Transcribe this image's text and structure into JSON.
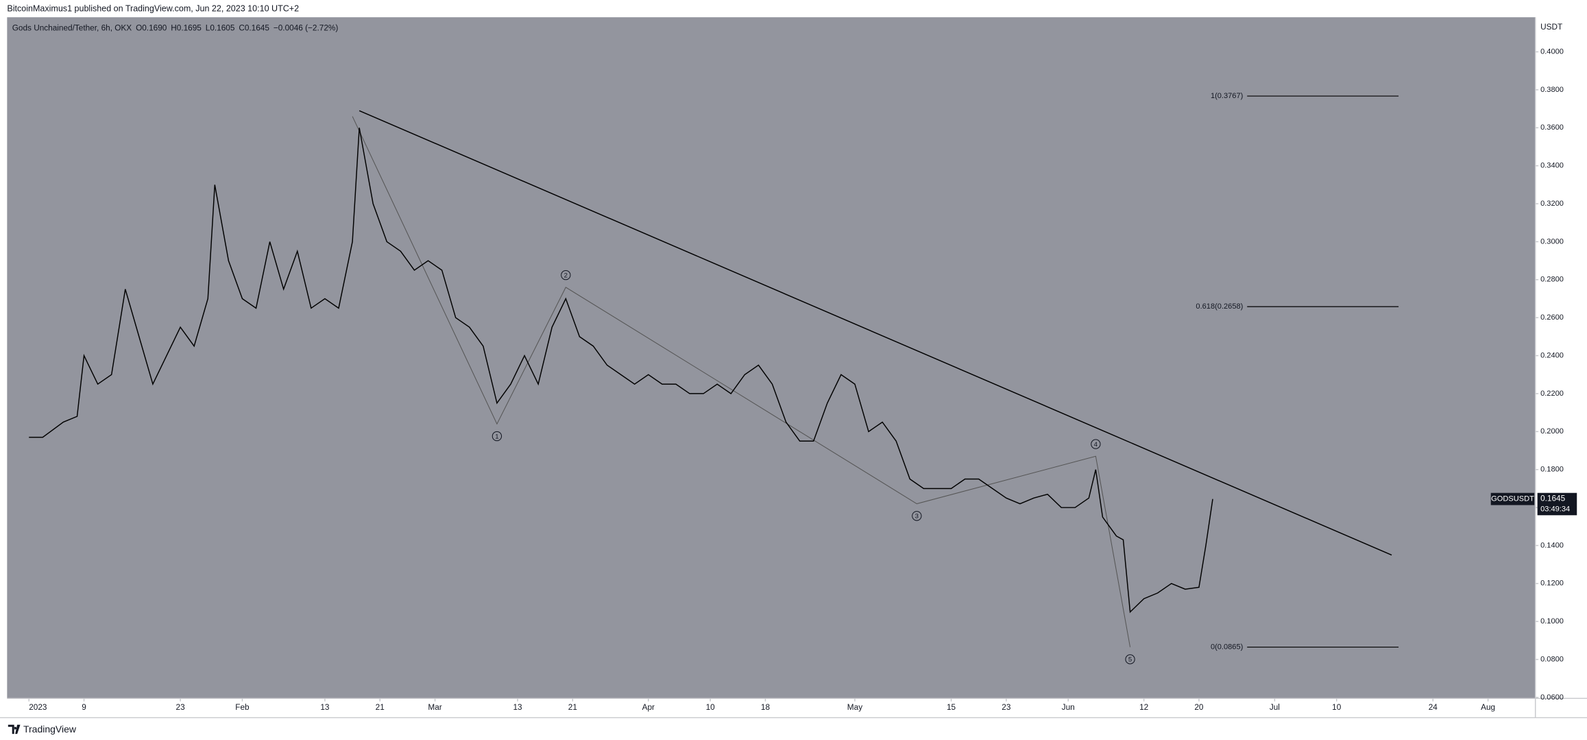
{
  "header": {
    "published": "BitcoinMaximus1 published on TradingView.com, Jun 22, 2023 10:10 UTC+2"
  },
  "footer": {
    "brand": "TradingView"
  },
  "chart_data": {
    "type": "line",
    "title": "Gods Unchained/Tether, 6h, OKX",
    "ohlc_text": [
      "O0.1690",
      "H0.1695",
      "L0.1605",
      "C0.1645",
      "−0.0046 (−2.72%)"
    ],
    "y_unit": "USDT",
    "x": [
      "2023-01-01",
      "2023-01-03",
      "2023-01-06",
      "2023-01-08",
      "2023-01-09",
      "2023-01-11",
      "2023-01-13",
      "2023-01-15",
      "2023-01-17",
      "2023-01-19",
      "2023-01-21",
      "2023-01-23",
      "2023-01-25",
      "2023-01-27",
      "2023-01-28",
      "2023-01-30",
      "2023-02-01",
      "2023-02-03",
      "2023-02-05",
      "2023-02-07",
      "2023-02-09",
      "2023-02-11",
      "2023-02-13",
      "2023-02-15",
      "2023-02-17",
      "2023-02-18",
      "2023-02-20",
      "2023-02-22",
      "2023-02-24",
      "2023-02-26",
      "2023-02-28",
      "2023-03-02",
      "2023-03-04",
      "2023-03-06",
      "2023-03-08",
      "2023-03-10",
      "2023-03-12",
      "2023-03-14",
      "2023-03-16",
      "2023-03-18",
      "2023-03-20",
      "2023-03-22",
      "2023-03-24",
      "2023-03-26",
      "2023-03-28",
      "2023-03-30",
      "2023-04-01",
      "2023-04-03",
      "2023-04-05",
      "2023-04-07",
      "2023-04-09",
      "2023-04-11",
      "2023-04-13",
      "2023-04-15",
      "2023-04-17",
      "2023-04-19",
      "2023-04-21",
      "2023-04-23",
      "2023-04-25",
      "2023-04-27",
      "2023-04-29",
      "2023-05-01",
      "2023-05-03",
      "2023-05-05",
      "2023-05-07",
      "2023-05-09",
      "2023-05-11",
      "2023-05-13",
      "2023-05-15",
      "2023-05-17",
      "2023-05-19",
      "2023-05-21",
      "2023-05-23",
      "2023-05-25",
      "2023-05-27",
      "2023-05-29",
      "2023-05-31",
      "2023-06-02",
      "2023-06-04",
      "2023-06-05",
      "2023-06-06",
      "2023-06-08",
      "2023-06-09",
      "2023-06-10",
      "2023-06-12",
      "2023-06-14",
      "2023-06-16",
      "2023-06-18",
      "2023-06-20",
      "2023-06-21",
      "2023-06-22"
    ],
    "series": [
      {
        "name": "GODSUSDT",
        "color": "#000000",
        "values": [
          0.197,
          0.197,
          0.205,
          0.208,
          0.24,
          0.225,
          0.23,
          0.275,
          0.25,
          0.225,
          0.24,
          0.255,
          0.245,
          0.27,
          0.33,
          0.29,
          0.27,
          0.265,
          0.3,
          0.275,
          0.295,
          0.265,
          0.27,
          0.265,
          0.3,
          0.36,
          0.32,
          0.3,
          0.295,
          0.285,
          0.29,
          0.285,
          0.26,
          0.255,
          0.245,
          0.215,
          0.225,
          0.24,
          0.225,
          0.255,
          0.27,
          0.25,
          0.245,
          0.235,
          0.23,
          0.225,
          0.23,
          0.225,
          0.225,
          0.22,
          0.22,
          0.225,
          0.22,
          0.23,
          0.235,
          0.225,
          0.205,
          0.195,
          0.195,
          0.215,
          0.23,
          0.225,
          0.2,
          0.205,
          0.195,
          0.175,
          0.17,
          0.17,
          0.17,
          0.175,
          0.175,
          0.17,
          0.165,
          0.162,
          0.165,
          0.167,
          0.16,
          0.16,
          0.165,
          0.18,
          0.155,
          0.145,
          0.143,
          0.105,
          0.112,
          0.115,
          0.12,
          0.117,
          0.118,
          0.14,
          0.1645
        ]
      }
    ],
    "last_price": {
      "value": 0.1645,
      "label": "0.1645",
      "countdown": "03:49:34"
    },
    "trendline": {
      "x": [
        "2023-02-18",
        "2023-07-18"
      ],
      "values": [
        0.369,
        0.135
      ],
      "color": "#000000"
    },
    "fib_x": [
      "2023-06-27",
      "2023-07-19"
    ],
    "fib_levels": [
      {
        "value": 0.3767,
        "label": "1(0.3767)"
      },
      {
        "value": 0.2658,
        "label": "0.618(0.2658)"
      },
      {
        "value": 0.0865,
        "label": "0(0.0865)"
      }
    ],
    "wave": {
      "x": [
        "2023-02-17",
        "2023-03-10",
        "2023-03-20",
        "2023-05-10",
        "2023-06-05",
        "2023-06-10"
      ],
      "values": [
        0.366,
        0.204,
        0.276,
        0.162,
        0.187,
        0.0865
      ],
      "labels": [
        null,
        "1",
        "2",
        "3",
        "4",
        "5"
      ],
      "color": "#555555"
    },
    "xlim": [
      "2023-01-01",
      "2023-08-07"
    ],
    "xticks": [
      {
        "value": "2023-01-01",
        "label": "2023"
      },
      {
        "value": "2023-01-09",
        "label": "9"
      },
      {
        "value": "2023-01-23",
        "label": "23"
      },
      {
        "value": "2023-02-01",
        "label": "Feb"
      },
      {
        "value": "2023-02-13",
        "label": "13"
      },
      {
        "value": "2023-02-21",
        "label": "21"
      },
      {
        "value": "2023-03-01",
        "label": "Mar"
      },
      {
        "value": "2023-03-13",
        "label": "13"
      },
      {
        "value": "2023-03-21",
        "label": "21"
      },
      {
        "value": "2023-04-01",
        "label": "Apr"
      },
      {
        "value": "2023-04-10",
        "label": "10"
      },
      {
        "value": "2023-04-18",
        "label": "18"
      },
      {
        "value": "2023-05-01",
        "label": "May"
      },
      {
        "value": "2023-05-15",
        "label": "15"
      },
      {
        "value": "2023-05-23",
        "label": "23"
      },
      {
        "value": "2023-06-01",
        "label": "Jun"
      },
      {
        "value": "2023-06-12",
        "label": "12"
      },
      {
        "value": "2023-06-20",
        "label": "20"
      },
      {
        "value": "2023-07-01",
        "label": "Jul"
      },
      {
        "value": "2023-07-10",
        "label": "10"
      },
      {
        "value": "2023-07-24",
        "label": "24"
      },
      {
        "value": "2023-08-01",
        "label": "Aug"
      }
    ],
    "ylim": [
      0.0595,
      0.4182
    ],
    "yticks": [
      {
        "value": 0.06,
        "label": "0.0600"
      },
      {
        "value": 0.08,
        "label": "0.0800"
      },
      {
        "value": 0.1,
        "label": "0.1000"
      },
      {
        "value": 0.12,
        "label": "0.1200"
      },
      {
        "value": 0.14,
        "label": "0.1400"
      },
      {
        "value": 0.16,
        "label": "0.1600"
      },
      {
        "value": 0.18,
        "label": "0.1800"
      },
      {
        "value": 0.2,
        "label": "0.2000"
      },
      {
        "value": 0.22,
        "label": "0.2200"
      },
      {
        "value": 0.24,
        "label": "0.2400"
      },
      {
        "value": 0.26,
        "label": "0.2600"
      },
      {
        "value": 0.28,
        "label": "0.2800"
      },
      {
        "value": 0.3,
        "label": "0.3000"
      },
      {
        "value": 0.32,
        "label": "0.3200"
      },
      {
        "value": 0.34,
        "label": "0.3400"
      },
      {
        "value": 0.36,
        "label": "0.3600"
      },
      {
        "value": 0.38,
        "label": "0.3800"
      },
      {
        "value": 0.4,
        "label": "0.4000"
      }
    ],
    "plot_color": "#93959e",
    "grid": false
  }
}
